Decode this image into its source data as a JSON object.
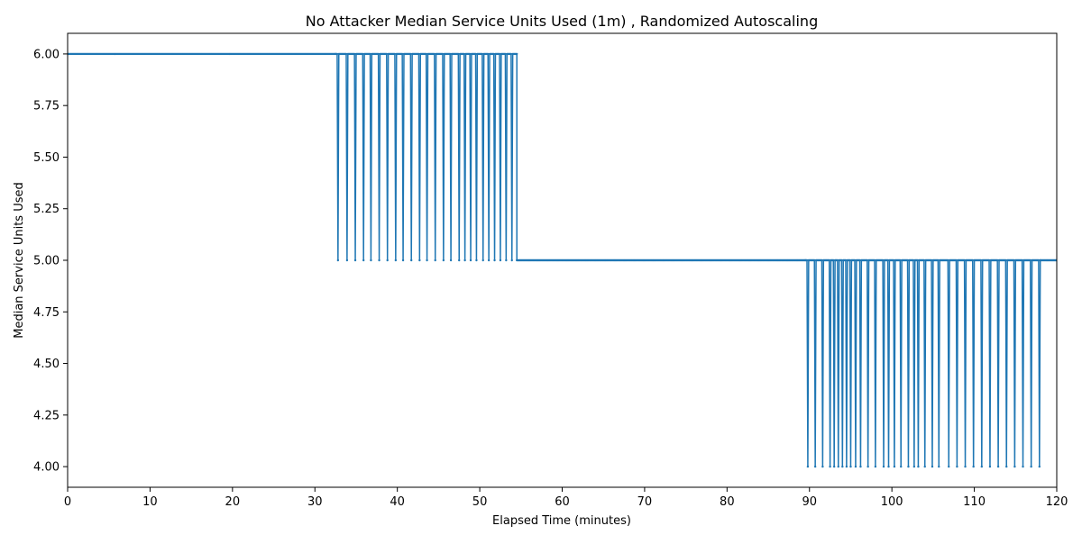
{
  "chart_data": {
    "type": "line",
    "title": "No Attacker Median Service Units Used (1m) , Randomized Autoscaling",
    "xlabel": "Elapsed Time (minutes)",
    "ylabel": "Median Service Units Used",
    "xlim": [
      0,
      120
    ],
    "ylim": [
      3.9,
      6.1
    ],
    "xticks": [
      0,
      10,
      20,
      30,
      40,
      50,
      60,
      70,
      80,
      90,
      100,
      110,
      120
    ],
    "yticks": [
      4.0,
      4.25,
      4.5,
      4.75,
      5.0,
      5.25,
      5.5,
      5.75,
      6.0
    ],
    "xtick_labels": [
      "0",
      "10",
      "20",
      "30",
      "40",
      "50",
      "60",
      "70",
      "80",
      "90",
      "100",
      "110",
      "120"
    ],
    "ytick_labels": [
      "4.00",
      "4.25",
      "4.50",
      "4.75",
      "5.00",
      "5.25",
      "5.50",
      "5.75",
      "6.00"
    ],
    "grid": false,
    "legend": "none",
    "series": [
      {
        "color": "#1f77b4",
        "segments": [
          {
            "x_start": 0,
            "x_end": 32.5,
            "value": 6
          },
          {
            "x_start": 32.5,
            "x_end": 54.5,
            "alternating": [
              6,
              5
            ],
            "dips_at": [
              32.8,
              33.9,
              34.9,
              35.9,
              36.8,
              37.8,
              38.8,
              39.8,
              40.7,
              41.7,
              42.7,
              43.6,
              44.6,
              45.6,
              46.5,
              47.5,
              48.2,
              48.9,
              49.6,
              50.4,
              51.1,
              51.8,
              52.5,
              53.2,
              53.9
            ]
          },
          {
            "x_start": 54.5,
            "x_end": 89.5,
            "value": 5
          },
          {
            "x_start": 89.5,
            "x_end": 118.0,
            "alternating": [
              5,
              4
            ],
            "dips_at": [
              89.8,
              90.7,
              91.6,
              92.5,
              93.0,
              93.5,
              94.0,
              94.5,
              95.0,
              95.6,
              96.2,
              97.1,
              98.0,
              99.0,
              99.6,
              100.3,
              101.1,
              102.0,
              102.7,
              103.2,
              104.0,
              104.9,
              105.7,
              106.9,
              107.9,
              108.9,
              109.9,
              110.9,
              111.9,
              112.9,
              113.9,
              114.9,
              115.9,
              116.9,
              117.9
            ]
          },
          {
            "x_start": 118.0,
            "x_end": 120,
            "value": 5
          }
        ]
      }
    ]
  }
}
